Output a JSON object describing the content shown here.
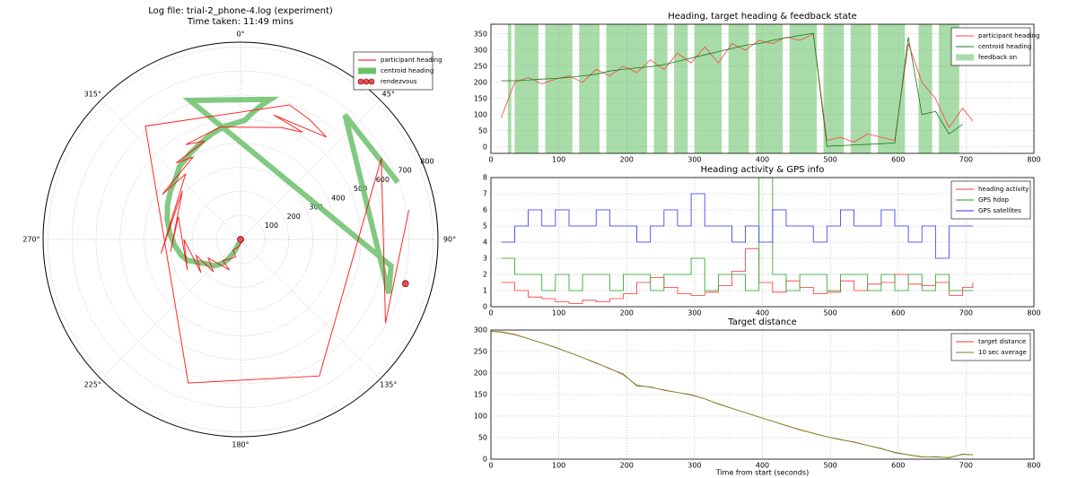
{
  "chart_data": [
    {
      "type": "polar",
      "title": "Log file: trial-2_phone-4.log (experiment)",
      "subtitle": "Time taken: 11:49 mins",
      "rlim": [
        0,
        820
      ],
      "rticks": [
        100,
        200,
        300,
        400,
        500,
        600,
        700,
        800
      ],
      "thetaticks": [
        {
          "value": 0,
          "label": "0°"
        },
        {
          "value": 45,
          "label": "45°"
        },
        {
          "value": 90,
          "label": "90°"
        },
        {
          "value": 135,
          "label": "135°"
        },
        {
          "value": 180,
          "label": "180°"
        },
        {
          "value": 225,
          "label": "225°"
        },
        {
          "value": 270,
          "label": "270°"
        },
        {
          "value": 315,
          "label": "315°"
        }
      ],
      "grid": true,
      "series": [
        {
          "name": "participant heading",
          "color": "#ff0000",
          "width": 1,
          "r": [
            15,
            35,
            55,
            75,
            95,
            115,
            135,
            155,
            175,
            195,
            215,
            235,
            255,
            275,
            295,
            315,
            335,
            355,
            375,
            395,
            415,
            435,
            455,
            475,
            495,
            515,
            535,
            555,
            575,
            595,
            615,
            635,
            655,
            675,
            695,
            710
          ],
          "theta": [
            90,
            200,
            215,
            195,
            210,
            220,
            200,
            240,
            220,
            250,
            230,
            270,
            240,
            290,
            260,
            310,
            260,
            320,
            300,
            330,
            320,
            340,
            330,
            350,
            20,
            30,
            15,
            40,
            30,
            20,
            320,
            200,
            150,
            60,
            120,
            80
          ]
        },
        {
          "name": "centroid heading",
          "color": "#6cc06c",
          "width": 6,
          "r": [
            15,
            35,
            55,
            75,
            95,
            115,
            135,
            155,
            175,
            195,
            215,
            235,
            255,
            275,
            295,
            315,
            335,
            355,
            375,
            395,
            415,
            435,
            455,
            475,
            495,
            515,
            535,
            555,
            575,
            595,
            615,
            635,
            655,
            675,
            695
          ],
          "theta": [
            205,
            205,
            207,
            210,
            212,
            215,
            220,
            225,
            235,
            240,
            245,
            248,
            255,
            265,
            275,
            285,
            295,
            305,
            315,
            320,
            330,
            338,
            345,
            352,
            2,
            4,
            6,
            8,
            10,
            12,
            340,
            100,
            110,
            40,
            70
          ]
        }
      ],
      "points": {
        "name": "rendezvous",
        "color": "#e05050",
        "r": [
          0,
          709
        ],
        "theta": [
          0,
          105
        ]
      },
      "legend": "upper right"
    },
    {
      "type": "line",
      "title": "Heading, target heading & feedback state",
      "xlim": [
        0,
        800
      ],
      "xticks": [
        0,
        100,
        200,
        300,
        400,
        500,
        600,
        700,
        800
      ],
      "ylim": [
        -20,
        380
      ],
      "yticks": [
        0,
        50,
        100,
        150,
        200,
        250,
        300,
        350
      ],
      "grid": true,
      "legend": "upper right",
      "x": [
        15,
        35,
        55,
        75,
        95,
        115,
        135,
        155,
        175,
        195,
        215,
        235,
        255,
        275,
        295,
        315,
        335,
        355,
        375,
        395,
        415,
        435,
        455,
        475,
        495,
        515,
        535,
        555,
        575,
        595,
        615,
        635,
        655,
        675,
        695,
        710
      ],
      "series": [
        {
          "name": "participant heading",
          "color": "#ff4040",
          "values": [
            90,
            200,
            215,
            195,
            210,
            220,
            200,
            240,
            220,
            250,
            230,
            270,
            240,
            290,
            260,
            310,
            260,
            320,
            300,
            330,
            320,
            340,
            330,
            350,
            20,
            30,
            15,
            40,
            30,
            20,
            320,
            200,
            150,
            60,
            120,
            80
          ]
        },
        {
          "name": "centroid heading",
          "color": "#1a7a1a",
          "values": [
            205,
            205,
            207,
            210,
            212,
            215,
            220,
            225,
            235,
            240,
            245,
            248,
            255,
            265,
            275,
            285,
            295,
            305,
            315,
            320,
            330,
            338,
            345,
            352,
            2,
            4,
            6,
            8,
            10,
            12,
            340,
            100,
            110,
            40,
            70,
            null
          ]
        }
      ],
      "spans": {
        "name": "feedback on",
        "color": "#a8dca8",
        "x": [
          [
            25,
            30
          ],
          [
            35,
            70
          ],
          [
            80,
            120
          ],
          [
            130,
            160
          ],
          [
            170,
            230
          ],
          [
            240,
            260
          ],
          [
            270,
            290
          ],
          [
            300,
            340
          ],
          [
            350,
            380
          ],
          [
            390,
            430
          ],
          [
            440,
            480
          ],
          [
            490,
            520
          ],
          [
            530,
            560
          ],
          [
            570,
            610
          ],
          [
            630,
            650
          ],
          [
            660,
            690
          ]
        ]
      }
    },
    {
      "type": "line",
      "title": "Heading activity & GPS info",
      "xlim": [
        0,
        800
      ],
      "xticks": [
        0,
        100,
        200,
        300,
        400,
        500,
        600,
        700,
        800
      ],
      "ylim": [
        0,
        8
      ],
      "yticks": [
        0,
        1,
        2,
        3,
        4,
        5,
        6,
        7,
        8
      ],
      "grid": true,
      "legend": "upper right",
      "step": true,
      "x": [
        15,
        35,
        55,
        75,
        95,
        115,
        135,
        155,
        175,
        195,
        215,
        235,
        255,
        275,
        295,
        315,
        335,
        355,
        375,
        395,
        415,
        435,
        455,
        475,
        495,
        515,
        535,
        555,
        575,
        595,
        615,
        635,
        655,
        675,
        695,
        710
      ],
      "series": [
        {
          "name": "heading activity",
          "color": "#ff3030",
          "values": [
            1.5,
            1.0,
            0.6,
            0.5,
            0.3,
            0.2,
            0.4,
            0.3,
            0.5,
            0.8,
            1.5,
            1.8,
            1.2,
            0.8,
            0.7,
            0.9,
            1.3,
            2.2,
            3.6,
            1.5,
            0.9,
            1.6,
            1.2,
            0.8,
            0.9,
            1.6,
            1.0,
            1.4,
            1.5,
            2.0,
            1.4,
            1.3,
            1.5,
            0.7,
            1.2,
            1.5
          ]
        },
        {
          "name": "GPS hdop",
          "color": "#20a020",
          "values": [
            3,
            2,
            2,
            1,
            2,
            1,
            2,
            2,
            1,
            2,
            2,
            1,
            2,
            2,
            3,
            1,
            2,
            2,
            1,
            8,
            2,
            1,
            2,
            2,
            1,
            2,
            2,
            1,
            2,
            1,
            2,
            1,
            2,
            1,
            1,
            1
          ]
        },
        {
          "name": "GPS satellites",
          "color": "#3030ff",
          "values": [
            4,
            5,
            6,
            5,
            6,
            5,
            5,
            6,
            5,
            5,
            4,
            5,
            6,
            5,
            7,
            5,
            5,
            4,
            5,
            4,
            6,
            5,
            5,
            4,
            5,
            6,
            5,
            5,
            6,
            5,
            4,
            5,
            3,
            5,
            5,
            5
          ]
        }
      ]
    },
    {
      "type": "line",
      "title": "Target distance",
      "xlabel": "Time from start (seconds)",
      "xlim": [
        0,
        800
      ],
      "xticks": [
        0,
        100,
        200,
        300,
        400,
        500,
        600,
        700,
        800
      ],
      "ylim": [
        0,
        300
      ],
      "yticks": [
        0,
        50,
        100,
        150,
        200,
        250,
        300
      ],
      "grid": true,
      "legend": "upper right",
      "x": [
        0,
        15,
        35,
        55,
        75,
        95,
        115,
        135,
        155,
        175,
        195,
        215,
        235,
        255,
        275,
        295,
        315,
        335,
        355,
        375,
        395,
        415,
        435,
        455,
        475,
        495,
        515,
        535,
        555,
        575,
        595,
        615,
        635,
        655,
        675,
        695,
        710
      ],
      "series": [
        {
          "name": "target distance",
          "color": "#e04020",
          "values": [
            297,
            296,
            290,
            280,
            270,
            260,
            248,
            236,
            224,
            210,
            198,
            170,
            168,
            160,
            155,
            150,
            140,
            128,
            118,
            108,
            98,
            88,
            78,
            68,
            60,
            52,
            45,
            40,
            32,
            25,
            15,
            10,
            5,
            6,
            3,
            12,
            10
          ]
        },
        {
          "name": "10 sec average",
          "color": "#6a8a20",
          "values": [
            297,
            295,
            289,
            280,
            270,
            259,
            248,
            236,
            223,
            211,
            196,
            172,
            167,
            161,
            155,
            149,
            140,
            129,
            118,
            108,
            98,
            88,
            78,
            69,
            60,
            52,
            46,
            39,
            32,
            24,
            16,
            10,
            6,
            5,
            4,
            11,
            10
          ]
        }
      ]
    }
  ]
}
